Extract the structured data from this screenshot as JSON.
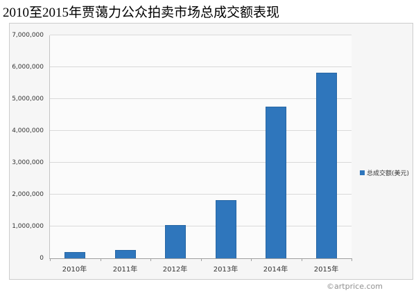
{
  "page": {
    "title": "2010至2015年贾蔼力公众拍卖市场总成交额表现",
    "footer": "©artprice.com"
  },
  "legend": {
    "label": "总成交额(美元)"
  },
  "chart_data": {
    "type": "bar",
    "title": "2010至2015年贾蔼力公众拍卖市场总成交额表现",
    "categories": [
      "2010年",
      "2011年",
      "2012年",
      "2013年",
      "2014年",
      "2015年"
    ],
    "values": [
      200000,
      270000,
      1050000,
      1820000,
      4760000,
      5830000
    ],
    "series_name": "总成交额(美元)",
    "xlabel": "",
    "ylabel": "",
    "ylim": [
      0,
      7000000
    ],
    "ytick_step": 1000000,
    "ytick_labels": [
      "0",
      "1,000,000",
      "2,000,000",
      "3,000,000",
      "4,000,000",
      "5,000,000",
      "6,000,000",
      "7,000,000"
    ],
    "grid": true,
    "legend_position": "right",
    "bar_color": "#2f76bc",
    "bar_border_color": "#2766a3",
    "gridline_color": "#d9d9d9",
    "panel_background": "#f6f6f6",
    "plot_background": "#fbfbfb"
  }
}
